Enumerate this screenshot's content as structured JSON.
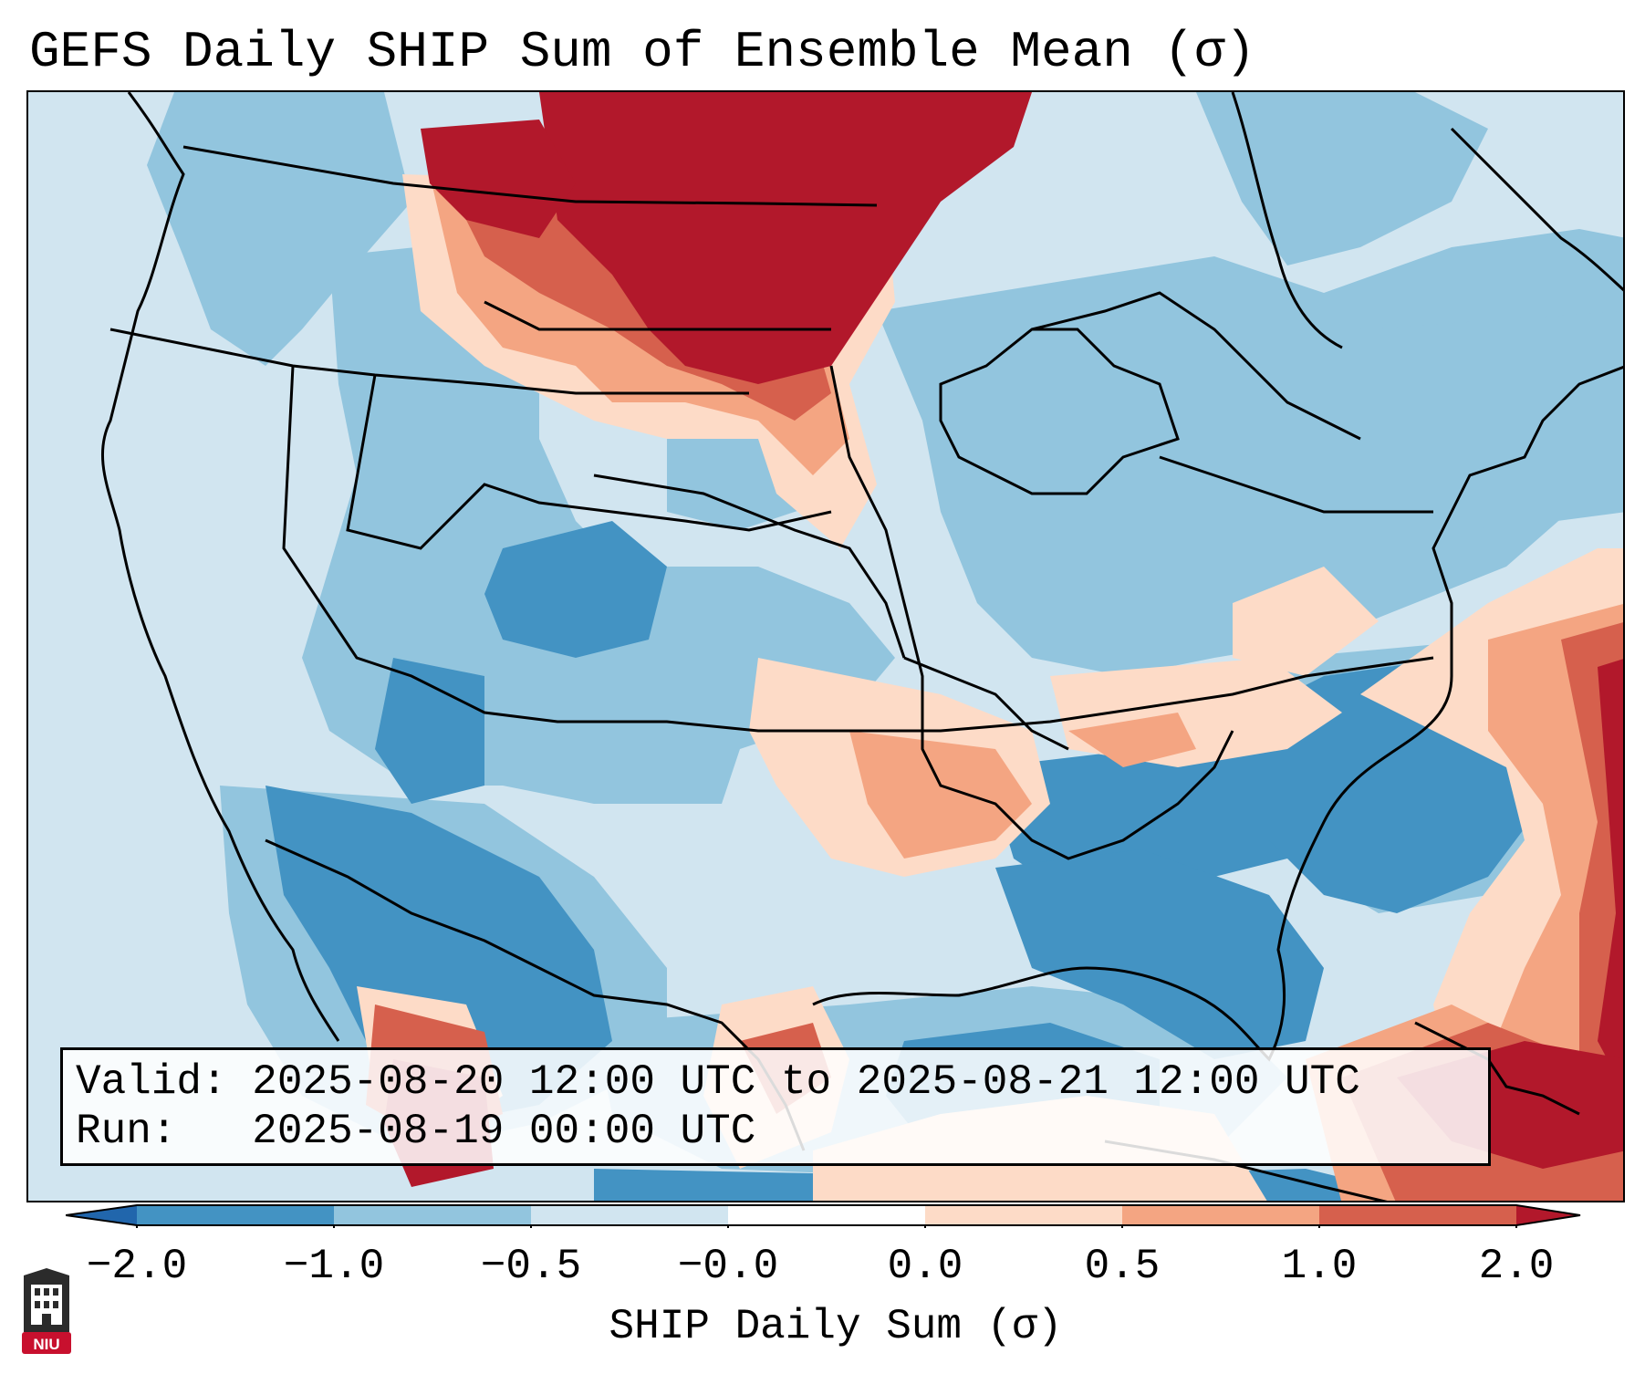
{
  "title": "GEFS Daily SHIP Sum of Ensemble Mean (σ)",
  "info": {
    "valid_label": "Valid:",
    "valid_value": "2025-08-20 12:00 UTC to 2025-08-21 12:00 UTC",
    "run_label": "Run:",
    "run_value": "2025-08-19 00:00 UTC"
  },
  "colorbar": {
    "label": "SHIP Daily Sum (σ)",
    "ticks": [
      "−2.0",
      "−1.0",
      "−0.5",
      "−0.0",
      "0.0",
      "0.5",
      "1.0",
      "2.0"
    ],
    "colors": [
      "#2166ac",
      "#4393c3",
      "#92c5de",
      "#d1e5f0",
      "#ffffff",
      "#fddbc7",
      "#f4a582",
      "#d6604d",
      "#b2182b"
    ]
  },
  "logo": {
    "text": "NIU",
    "color": "#c8102e"
  }
}
